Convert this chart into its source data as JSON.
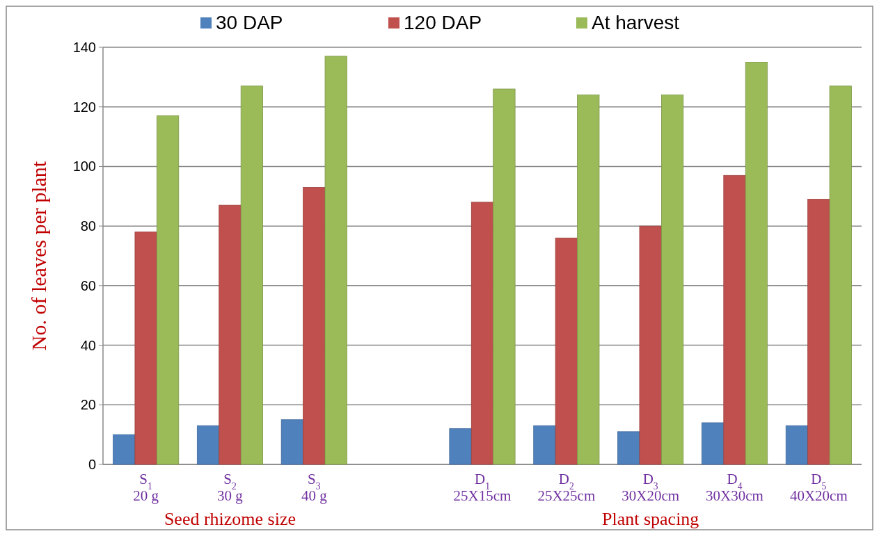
{
  "chart_data": {
    "type": "bar",
    "ylabel": "No. of leaves per plant",
    "categories": [
      "S$_{1}$\n20 g",
      "S$_{2}$\n30 g",
      "S$_{3}$\n40 g",
      null,
      "D$_{1}$\n25X15cm",
      "D$_{2}$\n25X25cm",
      "D$_{3}$\n30X20cm",
      "D$_{4}$\n30X30cm",
      "D$_{5}$\n40X20cm"
    ],
    "series": [
      {
        "name": "30 DAP",
        "color": "#4f81bd",
        "values": [
          10,
          13,
          15,
          null,
          12,
          13,
          11,
          14,
          13
        ]
      },
      {
        "name": "120 DAP",
        "color": "#c0504d",
        "values": [
          78,
          87,
          93,
          null,
          88,
          76,
          80,
          97,
          89
        ]
      },
      {
        "name": "At harvest",
        "color": "#9bbb59",
        "values": [
          117,
          127,
          137,
          null,
          126,
          124,
          124,
          135,
          127
        ]
      }
    ],
    "ylim": [
      0,
      140
    ],
    "yticks": [
      0,
      20,
      40,
      60,
      80,
      100,
      120,
      140
    ],
    "grid": "y",
    "legend": "top",
    "annotations": [
      "Seed rhizome size",
      "Plant spacing"
    ]
  }
}
